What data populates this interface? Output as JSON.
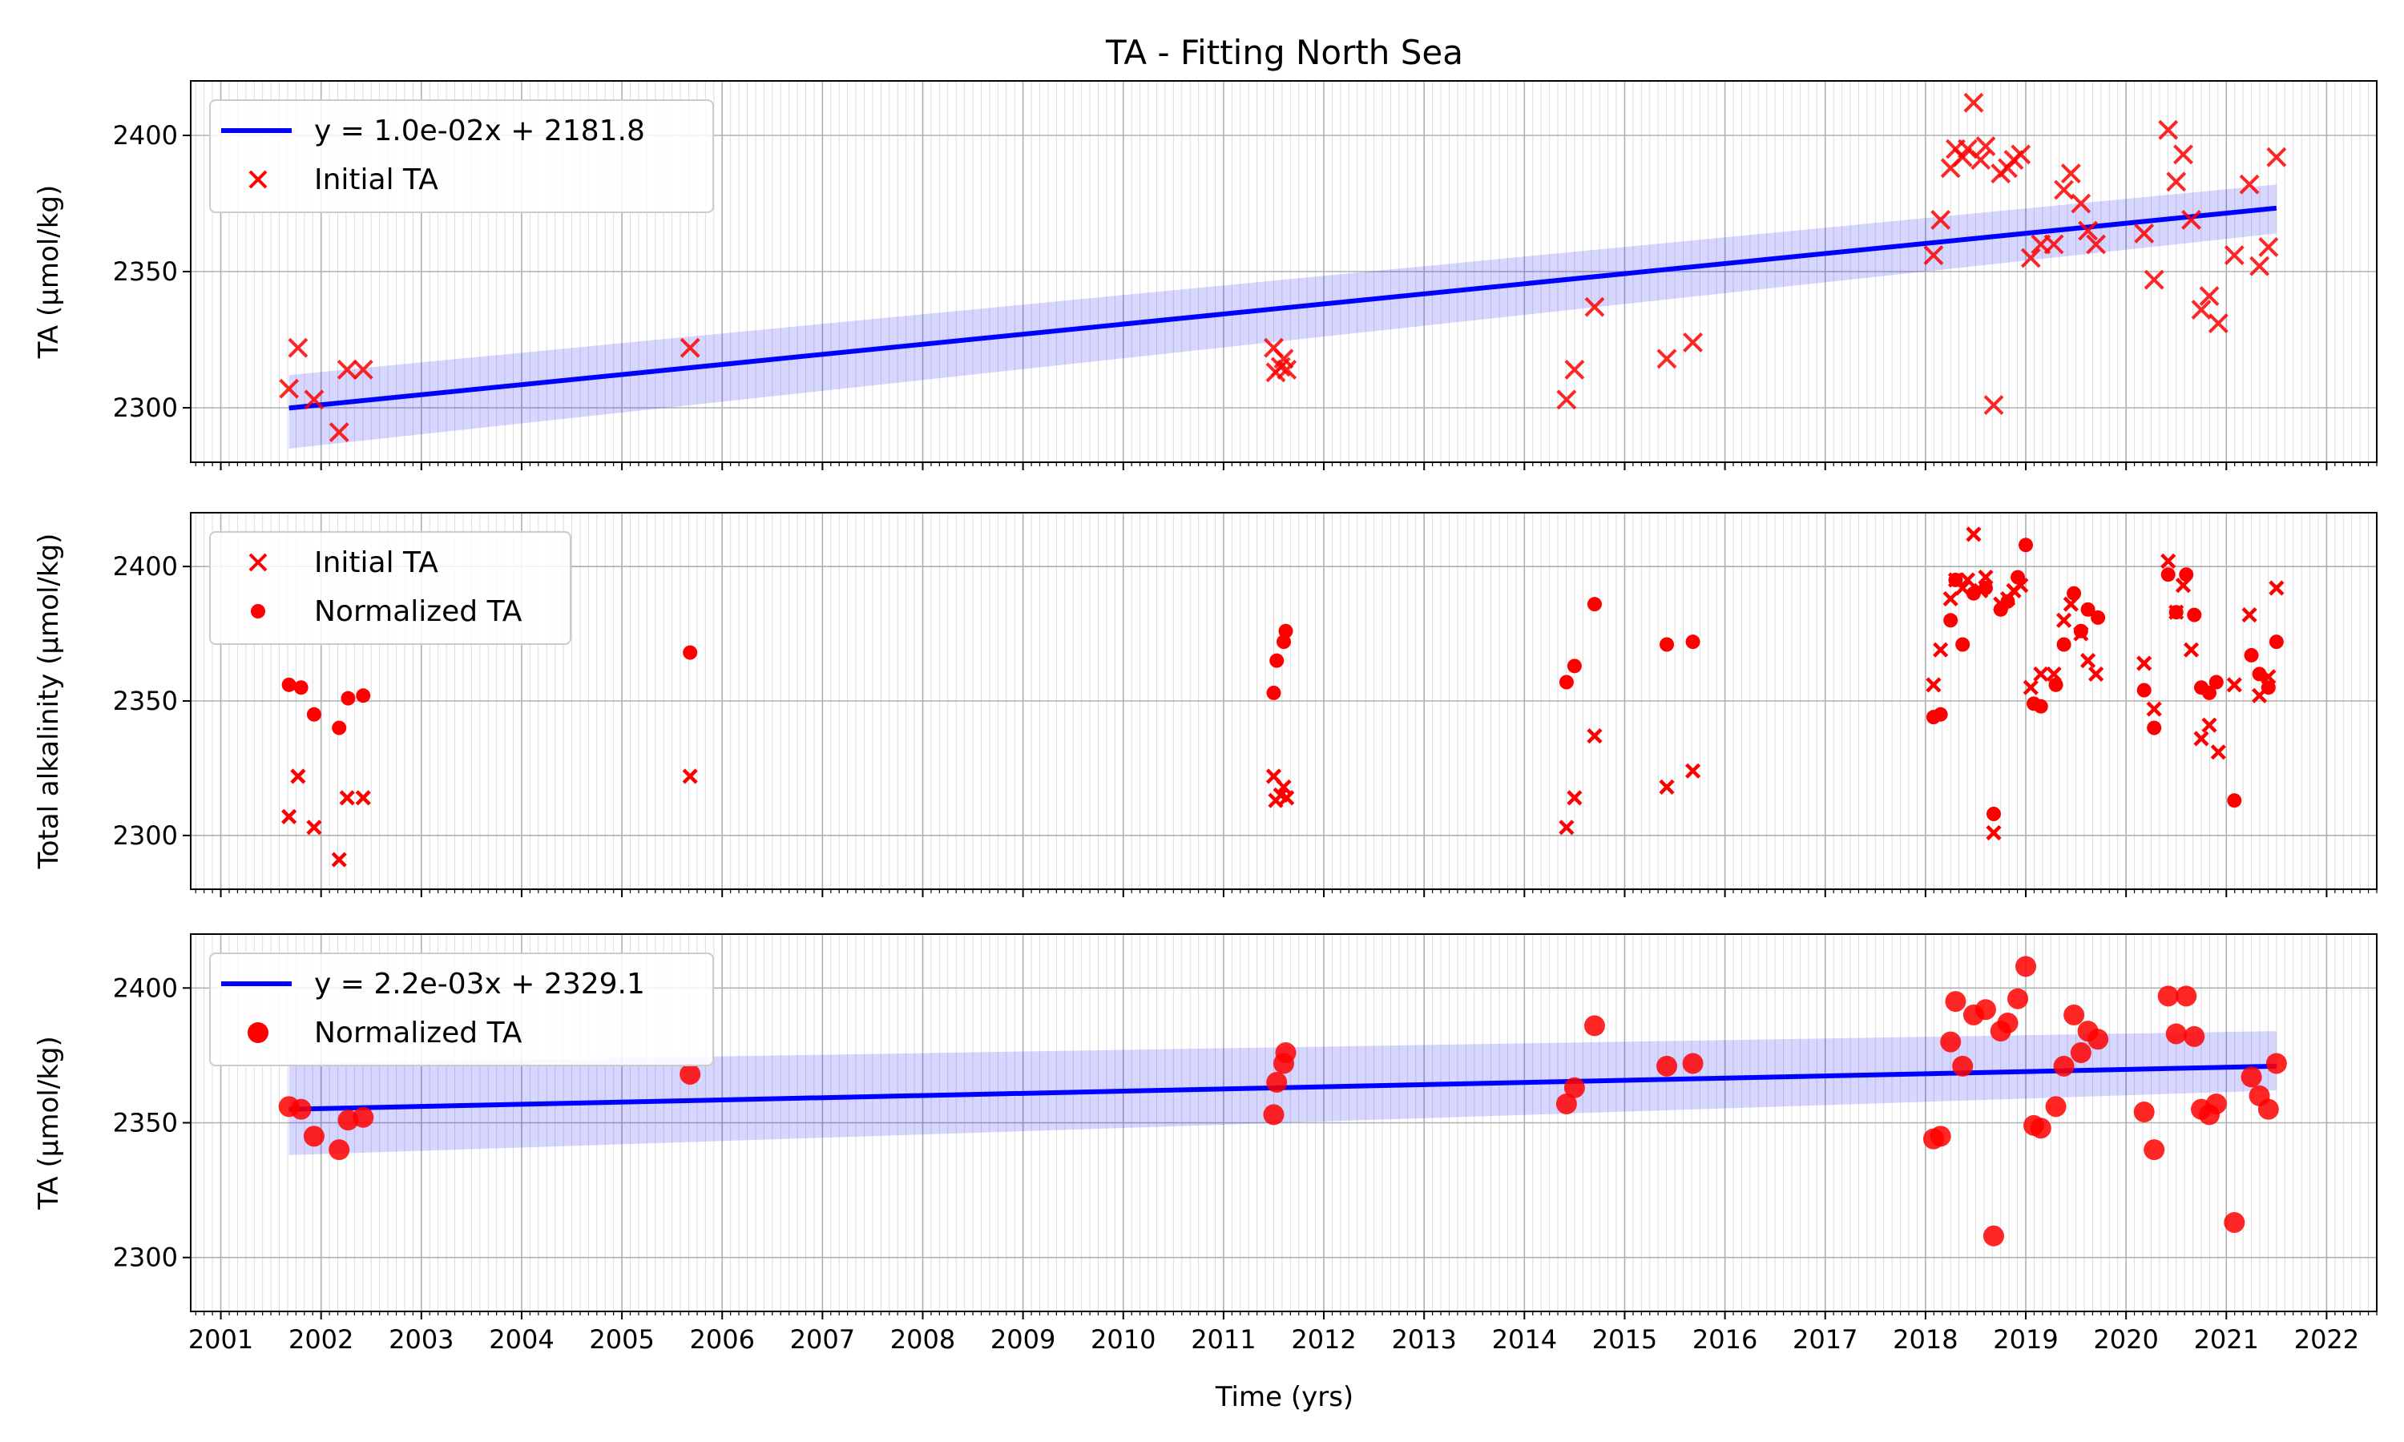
{
  "title": "TA - Fitting North Sea",
  "chart_data": [
    {
      "type": "scatter",
      "panel": "top",
      "ylabel": "TA (µmol/kg)",
      "ylim": [
        2280,
        2420
      ],
      "yticks": [
        2300,
        2350,
        2400
      ],
      "xlim": [
        2000.7,
        2022.5
      ],
      "grid": true,
      "legend_position": "top-left",
      "fit": {
        "label": "y = 1.0e-02x + 2181.8",
        "x": [
          2001.68,
          2021.5
        ],
        "y": [
          2299.9,
          2373.3
        ],
        "band_lower": [
          2285,
          2364
        ],
        "band_upper": [
          2312,
          2382
        ]
      },
      "series": [
        {
          "name": "Initial TA",
          "marker": "x",
          "points": [
            [
              2001.68,
              2307
            ],
            [
              2001.77,
              2322
            ],
            [
              2001.93,
              2303
            ],
            [
              2002.18,
              2291
            ],
            [
              2002.26,
              2314
            ],
            [
              2002.42,
              2314
            ],
            [
              2005.68,
              2322
            ],
            [
              2011.5,
              2322
            ],
            [
              2011.52,
              2313
            ],
            [
              2011.57,
              2315
            ],
            [
              2011.6,
              2318
            ],
            [
              2011.63,
              2314
            ],
            [
              2014.42,
              2303
            ],
            [
              2014.5,
              2314
            ],
            [
              2014.7,
              2337
            ],
            [
              2015.42,
              2318
            ],
            [
              2015.68,
              2324
            ],
            [
              2018.08,
              2356
            ],
            [
              2018.15,
              2369
            ],
            [
              2018.25,
              2388
            ],
            [
              2018.3,
              2395
            ],
            [
              2018.37,
              2392
            ],
            [
              2018.42,
              2395
            ],
            [
              2018.48,
              2412
            ],
            [
              2018.55,
              2391
            ],
            [
              2018.6,
              2396
            ],
            [
              2018.68,
              2301
            ],
            [
              2018.75,
              2386
            ],
            [
              2018.82,
              2388
            ],
            [
              2018.88,
              2391
            ],
            [
              2018.95,
              2393
            ],
            [
              2019.05,
              2355
            ],
            [
              2019.15,
              2360
            ],
            [
              2019.28,
              2360
            ],
            [
              2019.38,
              2380
            ],
            [
              2019.45,
              2386
            ],
            [
              2019.55,
              2375
            ],
            [
              2019.62,
              2365
            ],
            [
              2019.7,
              2360
            ],
            [
              2020.18,
              2364
            ],
            [
              2020.28,
              2347
            ],
            [
              2020.42,
              2402
            ],
            [
              2020.5,
              2383
            ],
            [
              2020.57,
              2393
            ],
            [
              2020.65,
              2369
            ],
            [
              2020.75,
              2336
            ],
            [
              2020.83,
              2341
            ],
            [
              2020.92,
              2331
            ],
            [
              2021.08,
              2356
            ],
            [
              2021.23,
              2382
            ],
            [
              2021.33,
              2352
            ],
            [
              2021.42,
              2359
            ],
            [
              2021.5,
              2392
            ]
          ]
        }
      ]
    },
    {
      "type": "scatter",
      "panel": "middle",
      "ylabel": "Total alkalinity (µmol/kg)",
      "ylim": [
        2280,
        2420
      ],
      "yticks": [
        2300,
        2350,
        2400
      ],
      "xlim": [
        2000.7,
        2022.5
      ],
      "grid": true,
      "legend_position": "top-left",
      "series": [
        {
          "name": "Initial TA",
          "marker": "x",
          "points": [
            [
              2001.68,
              2307
            ],
            [
              2001.77,
              2322
            ],
            [
              2001.93,
              2303
            ],
            [
              2002.18,
              2291
            ],
            [
              2002.26,
              2314
            ],
            [
              2002.42,
              2314
            ],
            [
              2005.68,
              2322
            ],
            [
              2011.5,
              2322
            ],
            [
              2011.52,
              2313
            ],
            [
              2011.57,
              2315
            ],
            [
              2011.6,
              2318
            ],
            [
              2011.63,
              2314
            ],
            [
              2014.42,
              2303
            ],
            [
              2014.5,
              2314
            ],
            [
              2014.7,
              2337
            ],
            [
              2015.42,
              2318
            ],
            [
              2015.68,
              2324
            ],
            [
              2018.08,
              2356
            ],
            [
              2018.15,
              2369
            ],
            [
              2018.25,
              2388
            ],
            [
              2018.3,
              2395
            ],
            [
              2018.37,
              2392
            ],
            [
              2018.42,
              2395
            ],
            [
              2018.48,
              2412
            ],
            [
              2018.55,
              2391
            ],
            [
              2018.6,
              2396
            ],
            [
              2018.68,
              2301
            ],
            [
              2018.75,
              2386
            ],
            [
              2018.82,
              2388
            ],
            [
              2018.88,
              2391
            ],
            [
              2018.95,
              2393
            ],
            [
              2019.05,
              2355
            ],
            [
              2019.15,
              2360
            ],
            [
              2019.28,
              2360
            ],
            [
              2019.38,
              2380
            ],
            [
              2019.45,
              2386
            ],
            [
              2019.55,
              2375
            ],
            [
              2019.62,
              2365
            ],
            [
              2019.7,
              2360
            ],
            [
              2020.18,
              2364
            ],
            [
              2020.28,
              2347
            ],
            [
              2020.42,
              2402
            ],
            [
              2020.5,
              2383
            ],
            [
              2020.57,
              2393
            ],
            [
              2020.65,
              2369
            ],
            [
              2020.75,
              2336
            ],
            [
              2020.83,
              2341
            ],
            [
              2020.92,
              2331
            ],
            [
              2021.08,
              2356
            ],
            [
              2021.23,
              2382
            ],
            [
              2021.33,
              2352
            ],
            [
              2021.42,
              2359
            ],
            [
              2021.5,
              2392
            ]
          ]
        },
        {
          "name": "Normalized TA",
          "marker": "o",
          "points": [
            [
              2001.68,
              2356
            ],
            [
              2001.8,
              2355
            ],
            [
              2001.93,
              2345
            ],
            [
              2002.18,
              2340
            ],
            [
              2002.27,
              2351
            ],
            [
              2002.42,
              2352
            ],
            [
              2005.68,
              2368
            ],
            [
              2011.5,
              2353
            ],
            [
              2011.53,
              2365
            ],
            [
              2011.6,
              2372
            ],
            [
              2011.62,
              2376
            ],
            [
              2014.42,
              2357
            ],
            [
              2014.5,
              2363
            ],
            [
              2014.7,
              2386
            ],
            [
              2015.42,
              2371
            ],
            [
              2015.68,
              2372
            ],
            [
              2018.08,
              2344
            ],
            [
              2018.15,
              2345
            ],
            [
              2018.25,
              2380
            ],
            [
              2018.3,
              2395
            ],
            [
              2018.37,
              2371
            ],
            [
              2018.48,
              2390
            ],
            [
              2018.6,
              2392
            ],
            [
              2018.68,
              2308
            ],
            [
              2018.75,
              2384
            ],
            [
              2018.82,
              2387
            ],
            [
              2018.92,
              2396
            ],
            [
              2019.0,
              2408
            ],
            [
              2019.08,
              2349
            ],
            [
              2019.15,
              2348
            ],
            [
              2019.3,
              2356
            ],
            [
              2019.38,
              2371
            ],
            [
              2019.48,
              2390
            ],
            [
              2019.55,
              2376
            ],
            [
              2019.62,
              2384
            ],
            [
              2019.72,
              2381
            ],
            [
              2020.18,
              2354
            ],
            [
              2020.28,
              2340
            ],
            [
              2020.42,
              2397
            ],
            [
              2020.5,
              2383
            ],
            [
              2020.6,
              2397
            ],
            [
              2020.68,
              2382
            ],
            [
              2020.75,
              2355
            ],
            [
              2020.83,
              2353
            ],
            [
              2020.9,
              2357
            ],
            [
              2021.08,
              2313
            ],
            [
              2021.25,
              2367
            ],
            [
              2021.33,
              2360
            ],
            [
              2021.42,
              2355
            ],
            [
              2021.5,
              2372
            ]
          ]
        }
      ]
    },
    {
      "type": "scatter",
      "panel": "bottom",
      "ylabel": "TA (µmol/kg)",
      "xlabel": "Time (yrs)",
      "ylim": [
        2280,
        2420
      ],
      "yticks": [
        2300,
        2350,
        2400
      ],
      "xlim": [
        2000.7,
        2022.5
      ],
      "xticks": [
        "2001",
        "2002",
        "2003",
        "2004",
        "2005",
        "2006",
        "2007",
        "2008",
        "2009",
        "2010",
        "2011",
        "2012",
        "2013",
        "2014",
        "2015",
        "2016",
        "2017",
        "2018",
        "2019",
        "2020",
        "2021",
        "2022"
      ],
      "grid": true,
      "legend_position": "top-left",
      "fit": {
        "label": "y = 2.2e-03x + 2329.1",
        "x": [
          2001.68,
          2021.5
        ],
        "y": [
          2355,
          2371
        ],
        "band_lower": [
          2338,
          2362
        ],
        "band_upper": [
          2372,
          2384
        ]
      },
      "series": [
        {
          "name": "Normalized TA",
          "marker": "o",
          "points": [
            [
              2001.68,
              2356
            ],
            [
              2001.8,
              2355
            ],
            [
              2001.93,
              2345
            ],
            [
              2002.18,
              2340
            ],
            [
              2002.27,
              2351
            ],
            [
              2002.42,
              2352
            ],
            [
              2005.68,
              2368
            ],
            [
              2011.5,
              2353
            ],
            [
              2011.53,
              2365
            ],
            [
              2011.6,
              2372
            ],
            [
              2011.62,
              2376
            ],
            [
              2014.42,
              2357
            ],
            [
              2014.5,
              2363
            ],
            [
              2014.7,
              2386
            ],
            [
              2015.42,
              2371
            ],
            [
              2015.68,
              2372
            ],
            [
              2018.08,
              2344
            ],
            [
              2018.15,
              2345
            ],
            [
              2018.25,
              2380
            ],
            [
              2018.3,
              2395
            ],
            [
              2018.37,
              2371
            ],
            [
              2018.48,
              2390
            ],
            [
              2018.6,
              2392
            ],
            [
              2018.68,
              2308
            ],
            [
              2018.75,
              2384
            ],
            [
              2018.82,
              2387
            ],
            [
              2018.92,
              2396
            ],
            [
              2019.0,
              2408
            ],
            [
              2019.08,
              2349
            ],
            [
              2019.15,
              2348
            ],
            [
              2019.3,
              2356
            ],
            [
              2019.38,
              2371
            ],
            [
              2019.48,
              2390
            ],
            [
              2019.55,
              2376
            ],
            [
              2019.62,
              2384
            ],
            [
              2019.72,
              2381
            ],
            [
              2020.18,
              2354
            ],
            [
              2020.28,
              2340
            ],
            [
              2020.42,
              2397
            ],
            [
              2020.5,
              2383
            ],
            [
              2020.6,
              2397
            ],
            [
              2020.68,
              2382
            ],
            [
              2020.75,
              2355
            ],
            [
              2020.83,
              2353
            ],
            [
              2020.9,
              2357
            ],
            [
              2021.08,
              2313
            ],
            [
              2021.25,
              2367
            ],
            [
              2021.33,
              2360
            ],
            [
              2021.42,
              2355
            ],
            [
              2021.5,
              2372
            ]
          ]
        }
      ]
    }
  ],
  "colors": {
    "fit_line": "#0000ff",
    "band": "#0000ff",
    "marker": "#ff0000",
    "grid": "#b0b0b0"
  }
}
